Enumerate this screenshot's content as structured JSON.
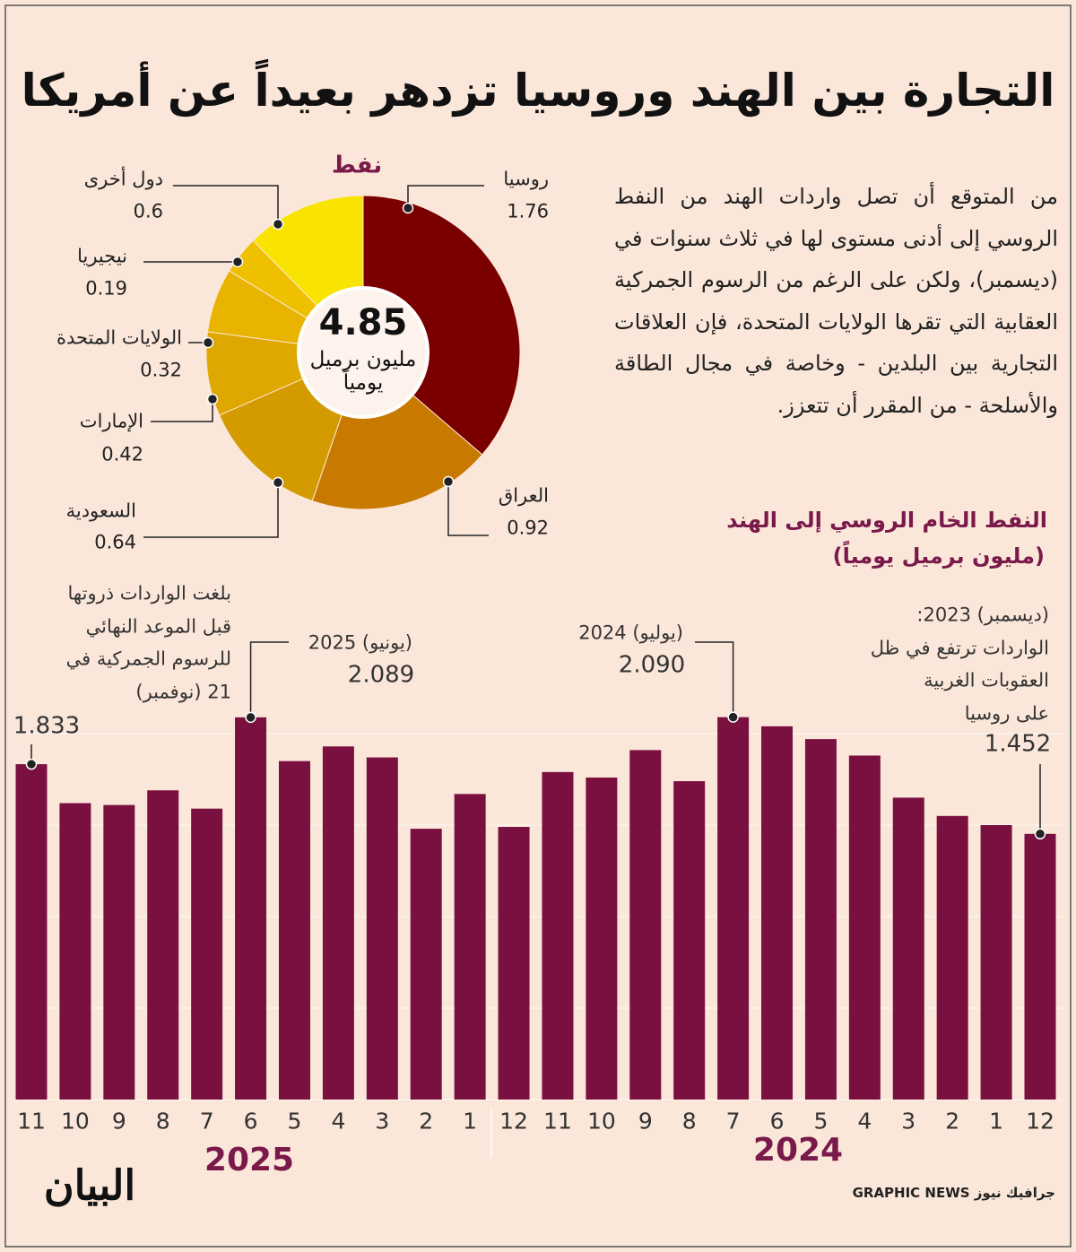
{
  "title": "التجارة بين الهند وروسيا تزدهر بعيداً عن أمريكا",
  "body": "من المتوقع أن تصل واردات الهند من النفط الروسي إلى أدنى مستوى لها في ثلاث سنوات في (ديسمبر)، ولكن على الرغم من الرسوم الجمركية العقابية التي تقرها الولايات المتحدة، فإن العلاقات التجارية بين البلدين - وخاصة في مجال الطاقة والأسلحة - من المقرر أن تتعزز.",
  "chart_data": [
    {
      "type": "donut",
      "title": "نفط",
      "total": 4.85,
      "total_label": "مليون برميل يومياً",
      "categories": [
        "روسيا",
        "العراق",
        "السعودية",
        "الإمارات",
        "الولايات المتحدة",
        "نيجيريا",
        "دول أخرى"
      ],
      "values": [
        1.76,
        0.92,
        0.64,
        0.42,
        0.32,
        0.19,
        0.6
      ],
      "colors": [
        "#7a0000",
        "#c87a00",
        "#d39b00",
        "#dea800",
        "#e8b400",
        "#efc000",
        "#f8e400"
      ]
    },
    {
      "type": "bar",
      "title": "النفط الخام الروسي إلى الهند",
      "subtitle": "(مليون برميل يومياً)",
      "categories": [
        "12",
        "1",
        "2",
        "3",
        "4",
        "5",
        "6",
        "7",
        "8",
        "9",
        "10",
        "11",
        "12",
        "1",
        "2",
        "3",
        "4",
        "5",
        "6",
        "7",
        "8",
        "9",
        "10",
        "11"
      ],
      "values": [
        1.452,
        1.5,
        1.55,
        1.65,
        1.88,
        1.97,
        2.04,
        2.09,
        1.74,
        1.91,
        1.76,
        1.79,
        1.49,
        1.67,
        1.48,
        1.87,
        1.93,
        1.85,
        2.089,
        1.59,
        1.69,
        1.61,
        1.62,
        1.833
      ],
      "value_labels": [
        "1.452",
        null,
        null,
        null,
        null,
        null,
        null,
        "2.090",
        null,
        null,
        null,
        null,
        null,
        null,
        null,
        null,
        null,
        null,
        "2.089",
        null,
        null,
        null,
        null,
        "1.833"
      ],
      "color": "#7a1040",
      "years": [
        "2024",
        "2025"
      ],
      "ylim": [
        0,
        2.5
      ],
      "yticks": [
        0,
        0.5,
        1,
        1.5,
        2
      ],
      "grid": true,
      "annotations": [
        [
          "(ديسمبر) 2023:",
          "الواردات ترتفع في ظل",
          "العقوبات الغربية",
          "على روسيا"
        ],
        [
          "(يوليو) 2024"
        ],
        [
          "(يونيو) 2025"
        ],
        [
          "بلغت الواردات ذروتها",
          "قبل الموعد النهائي",
          "للرسوم الجمركية في",
          "21 (نوفمبر)"
        ]
      ]
    }
  ],
  "footer": {
    "logo": "البيان",
    "credit": "GRAPHIC NEWS جرافيك نيوز"
  }
}
